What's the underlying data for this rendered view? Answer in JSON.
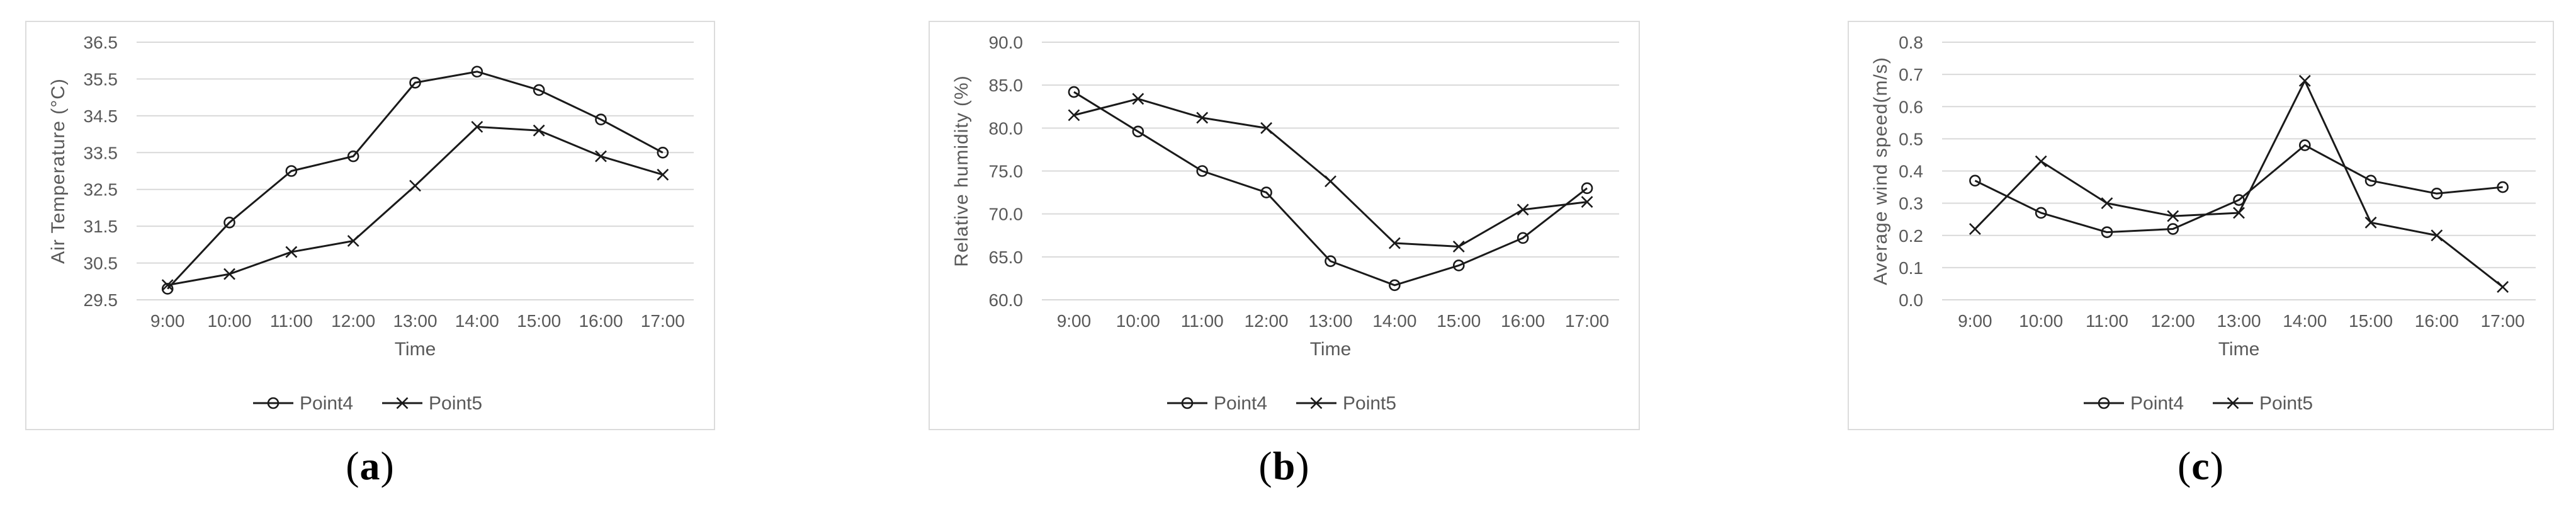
{
  "page": {
    "background": "#ffffff",
    "description": "Three side-by-side line charts comparing measurement points over time"
  },
  "colors": {
    "series_line": "#1a1a1a",
    "gridline": "#d9d9d9",
    "panel_border": "#dcdcdc",
    "tick_text": "#595959",
    "axis_title_text": "#595959",
    "legend_text": "#595959",
    "caption_text": "#000000"
  },
  "chart_data": [
    {
      "id": "a",
      "type": "line",
      "caption_open": "(",
      "caption_letter": "a",
      "caption_close": ")",
      "xlabel": "Time",
      "ylabel": "Air Temperature (°C)",
      "categories": [
        "9:00",
        "10:00",
        "11:00",
        "12:00",
        "13:00",
        "14:00",
        "15:00",
        "16:00",
        "17:00"
      ],
      "y_axis": {
        "min": 29.5,
        "max": 36.5,
        "step": 1.0,
        "decimals": 1
      },
      "grid": true,
      "legend_position": "bottom",
      "series": [
        {
          "name": "Point4",
          "marker": "circle",
          "values": [
            29.8,
            31.6,
            33.0,
            33.4,
            35.4,
            35.7,
            35.2,
            34.4,
            33.5
          ]
        },
        {
          "name": "Point5",
          "marker": "x",
          "values": [
            29.9,
            30.2,
            30.8,
            31.1,
            32.6,
            34.2,
            34.1,
            33.4,
            32.9
          ]
        }
      ]
    },
    {
      "id": "b",
      "type": "line",
      "caption_open": "(",
      "caption_letter": "b",
      "caption_close": ")",
      "xlabel": "Time",
      "ylabel": "Relative humidity (%)",
      "categories": [
        "9:00",
        "10:00",
        "11:00",
        "12:00",
        "13:00",
        "14:00",
        "15:00",
        "16:00",
        "17:00"
      ],
      "y_axis": {
        "min": 60.0,
        "max": 90.0,
        "step": 5.0,
        "decimals": 1
      },
      "grid": true,
      "legend_position": "bottom",
      "series": [
        {
          "name": "Point4",
          "marker": "circle",
          "values": [
            84.2,
            79.6,
            75.0,
            72.5,
            64.5,
            61.7,
            64.0,
            67.2,
            73.0
          ]
        },
        {
          "name": "Point5",
          "marker": "x",
          "values": [
            81.5,
            83.4,
            81.2,
            80.0,
            73.8,
            66.6,
            66.2,
            70.5,
            71.4
          ]
        }
      ]
    },
    {
      "id": "c",
      "type": "line",
      "caption_open": "(",
      "caption_letter": "c",
      "caption_close": ")",
      "xlabel": "Time",
      "ylabel": "Average wind speed(m/s)",
      "categories": [
        "9:00",
        "10:00",
        "11:00",
        "12:00",
        "13:00",
        "14:00",
        "15:00",
        "16:00",
        "17:00"
      ],
      "y_axis": {
        "min": 0.0,
        "max": 0.8,
        "step": 0.1,
        "decimals": 1
      },
      "grid": true,
      "legend_position": "bottom",
      "series": [
        {
          "name": "Point4",
          "marker": "circle",
          "values": [
            0.37,
            0.27,
            0.21,
            0.22,
            0.31,
            0.48,
            0.37,
            0.33,
            0.35
          ]
        },
        {
          "name": "Point5",
          "marker": "x",
          "values": [
            0.22,
            0.43,
            0.3,
            0.26,
            0.27,
            0.68,
            0.24,
            0.2,
            0.04
          ]
        }
      ]
    }
  ]
}
